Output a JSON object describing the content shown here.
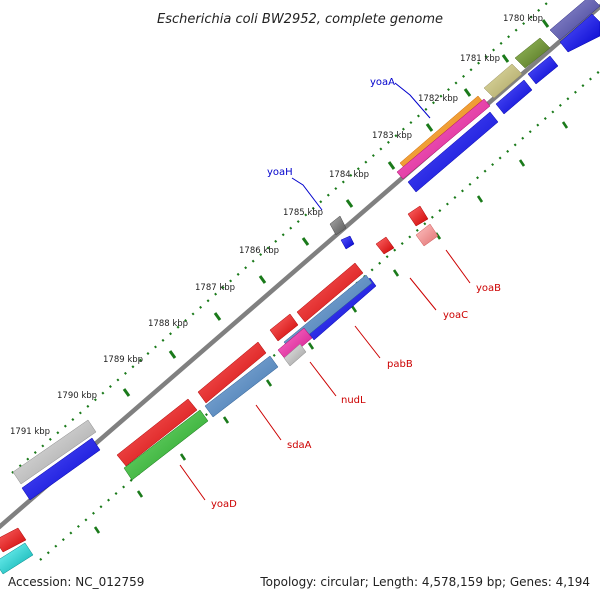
{
  "title": "Escherichia coli BW2952, complete genome",
  "footer": {
    "accession": "Accession: NC_012759",
    "summary": "Topology: circular; Length: 4,578,159 bp; Genes: 4,194"
  },
  "colors": {
    "backbone": "#808080",
    "ticks": "#1a7a1a",
    "forward_label": "#0000cc",
    "reverse_label": "#cc0000"
  },
  "tick_labels": [
    "1780 kbp",
    "1781 kbp",
    "1782 kbp",
    "1783 kbp",
    "1784 kbp",
    "1785 kbp",
    "1786 kbp",
    "1787 kbp",
    "1788 kbp",
    "1789 kbp",
    "1790 kbp",
    "1791 kbp"
  ],
  "gene_labels": {
    "yoaA": "yoaA",
    "yoaH": "yoaH",
    "yoaB": "yoaB",
    "yoaC": "yoaC",
    "pabB": "pabB",
    "nudL": "nudL",
    "sdaA": "sdaA",
    "yoaD": "yoaD"
  }
}
